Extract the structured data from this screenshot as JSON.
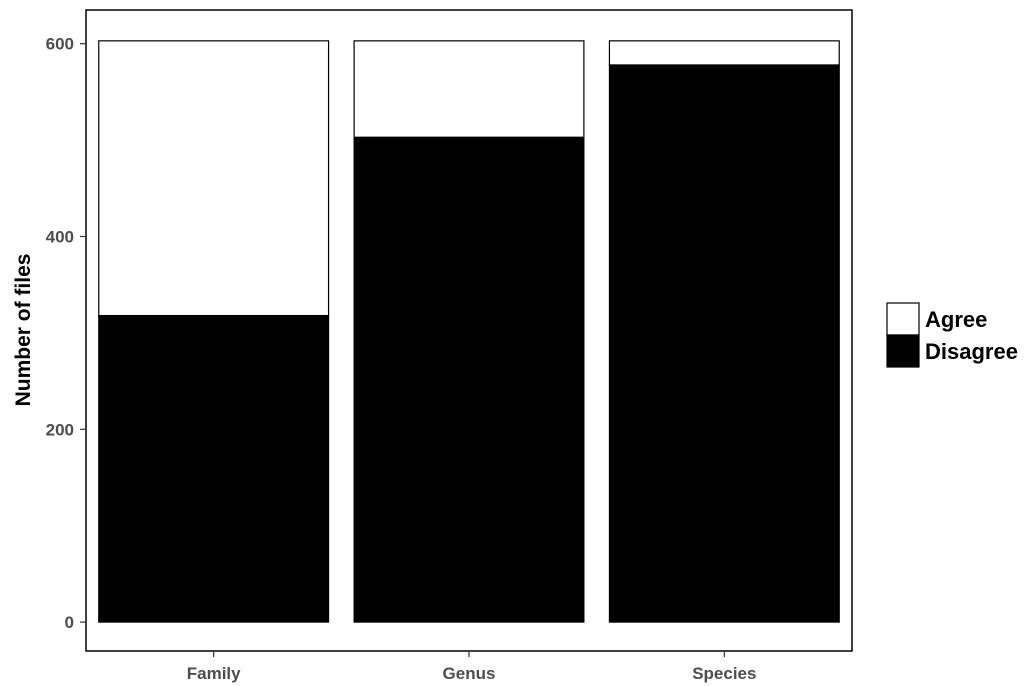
{
  "chart_data": {
    "type": "bar",
    "stacked": true,
    "title": "",
    "xlabel": "",
    "ylabel": "Number of files",
    "categories": [
      "Family",
      "Genus",
      "Species"
    ],
    "series": [
      {
        "name": "Agree",
        "values": [
          285,
          100,
          25
        ],
        "color": "#ffffff"
      },
      {
        "name": "Disagree",
        "values": [
          318,
          503,
          578
        ],
        "color": "#000000"
      }
    ],
    "ylim": [
      -30,
      635
    ],
    "yticks": [
      0,
      200,
      400,
      600
    ],
    "grid": false,
    "legend": {
      "position": "right",
      "items": [
        "Agree",
        "Disagree"
      ]
    }
  }
}
